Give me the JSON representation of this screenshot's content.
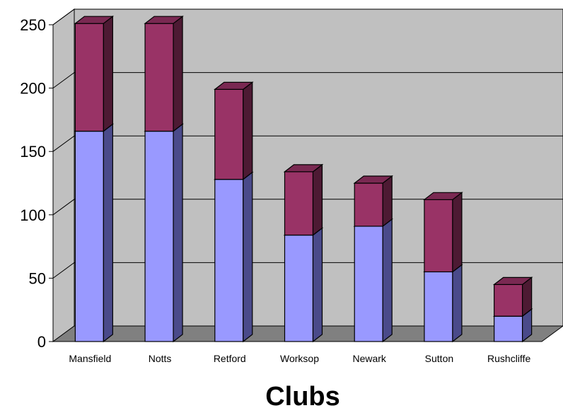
{
  "chart_data": {
    "type": "bar",
    "stacked": true,
    "three_d": true,
    "categories": [
      "Mansfield",
      "Notts",
      "Retford",
      "Worksop",
      "Newark",
      "Sutton",
      "Rushcliffe"
    ],
    "series": [
      {
        "values": [
          166,
          166,
          128,
          84,
          91,
          55,
          20
        ],
        "color": "#9999ff",
        "top_color": "#8a8ae6",
        "side_color": "#4a4a8a"
      },
      {
        "values": [
          85,
          85,
          71,
          50,
          34,
          57,
          25
        ],
        "color": "#993366",
        "top_color": "#7a2952",
        "side_color": "#4d1a33"
      }
    ],
    "xlabel": "Clubs",
    "ylabel": "",
    "ylim": [
      0,
      250
    ],
    "yticks": [
      "0",
      "50",
      "100",
      "150",
      "200",
      "250"
    ],
    "grid": true,
    "wall_color": "#c0c0c0",
    "floor_color": "#808080",
    "legend": "none"
  }
}
